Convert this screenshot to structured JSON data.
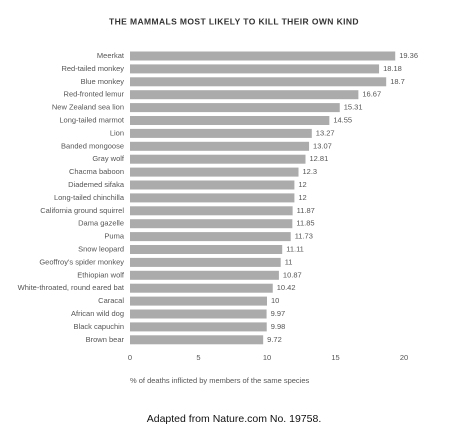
{
  "chart_data": {
    "type": "hbar",
    "title": "THE MAMMALS MOST LIKELY TO KILL THEIR OWN KIND",
    "categories": [
      "Meerkat",
      "Red-tailed monkey",
      "Blue monkey",
      "Red-fronted lemur",
      "New Zealand sea lion",
      "Long-tailed marmot",
      "Lion",
      "Banded mongoose",
      "Gray wolf",
      "Chacma baboon",
      "Diademed sifaka",
      "Long-tailed chinchilla",
      "California ground squirrel",
      "Dama gazelle",
      "Puma",
      "Snow leopard",
      "Geoffroy's spider monkey",
      "Ethiopian wolf",
      "White-throated, round eared bat",
      "Caracal",
      "African wild dog",
      "Black capuchin",
      "Brown bear"
    ],
    "values": [
      19.36,
      18.18,
      18.7,
      16.67,
      15.31,
      14.55,
      13.27,
      13.07,
      12.81,
      12.3,
      12,
      12,
      11.87,
      11.85,
      11.73,
      11.11,
      11,
      10.87,
      10.42,
      10,
      9.97,
      9.98,
      9.72
    ],
    "color": "#ababab",
    "xlim": [
      0,
      20
    ],
    "xticks": [
      0,
      5,
      10,
      15,
      20
    ],
    "xlabel": "% of deaths inflicted by members of the same species",
    "source": "Adapted from Nature.com No. 19758."
  }
}
